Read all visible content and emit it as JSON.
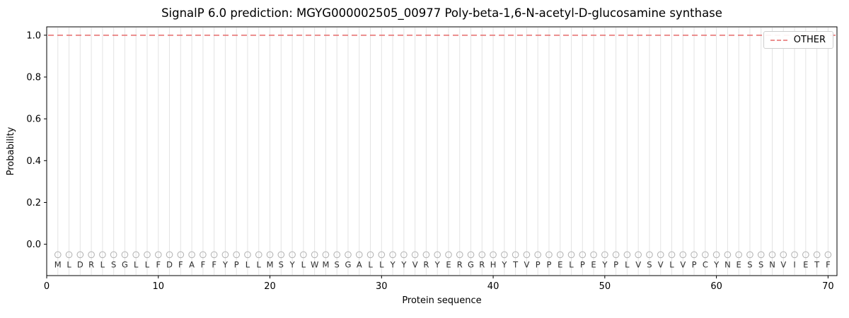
{
  "chart_data": {
    "type": "line",
    "title": "SignalP 6.0 prediction: MGYG000002505_00977 Poly-beta-1,6-N-acetyl-D-glucosamine synthase",
    "xlabel": "Protein sequence",
    "ylabel": "Probability",
    "xlim": [
      0,
      70.8
    ],
    "ylim": [
      -0.15,
      1.04
    ],
    "xticks": [
      0,
      10,
      20,
      30,
      40,
      50,
      60,
      70
    ],
    "yticks": [
      0.0,
      0.2,
      0.4,
      0.6,
      0.8,
      1.0
    ],
    "grid": {
      "vertical_per_residue": true,
      "color": "#e3e3e3"
    },
    "legend": {
      "position": "upper right",
      "entries": [
        {
          "label": "OTHER",
          "color": "#e56a6a",
          "linestyle": "dashed"
        }
      ]
    },
    "series": [
      {
        "name": "OTHER",
        "color": "#e56a6a",
        "linestyle": "dashed",
        "y_constant": 1.0,
        "span": "full-x-axis"
      }
    ],
    "marker": {
      "y": -0.05,
      "shape": "circle",
      "fill": "none",
      "color": "#b5b5b5"
    },
    "sequence": [
      "M",
      "L",
      "D",
      "R",
      "L",
      "S",
      "G",
      "L",
      "L",
      "F",
      "D",
      "F",
      "A",
      "F",
      "F",
      "Y",
      "P",
      "L",
      "L",
      "M",
      "S",
      "Y",
      "L",
      "W",
      "M",
      "S",
      "G",
      "A",
      "L",
      "L",
      "Y",
      "Y",
      "V",
      "R",
      "Y",
      "E",
      "R",
      "G",
      "R",
      "H",
      "Y",
      "T",
      "V",
      "P",
      "P",
      "E",
      "L",
      "P",
      "E",
      "Y",
      "P",
      "L",
      "V",
      "S",
      "V",
      "L",
      "V",
      "P",
      "C",
      "Y",
      "N",
      "E",
      "S",
      "S",
      "N",
      "V",
      "I",
      "E",
      "T",
      "F"
    ],
    "sequence_x_start": 1,
    "letter_color": "#303030",
    "frame_color": "#000000"
  }
}
